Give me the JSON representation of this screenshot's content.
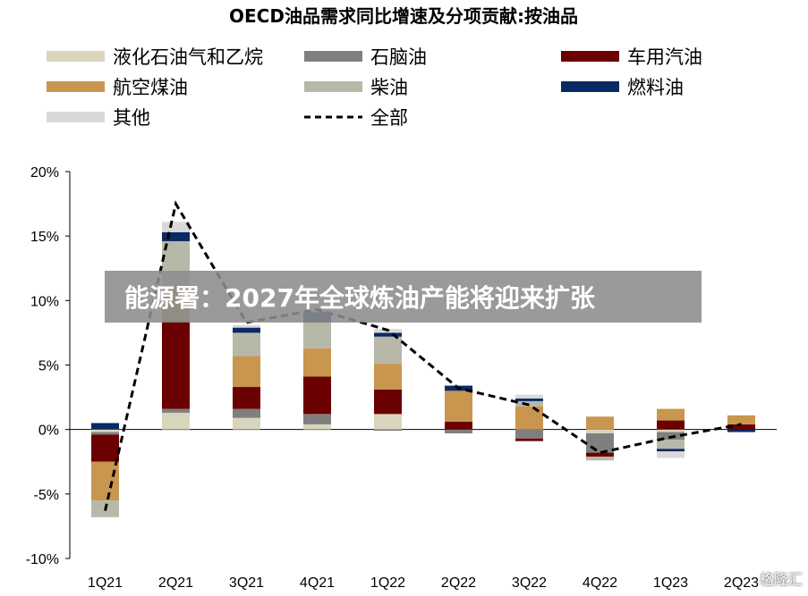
{
  "chart_data": {
    "type": "bar",
    "stacked": true,
    "title": "OECD油品需求同比增速及分项贡献:按油品",
    "categories": [
      "1Q21",
      "2Q21",
      "3Q21",
      "4Q21",
      "1Q22",
      "2Q22",
      "3Q22",
      "4Q22",
      "1Q23",
      "2Q23"
    ],
    "y_ticks": [
      "20%",
      "15%",
      "10%",
      "5%",
      "0%",
      "-5%",
      "-10%"
    ],
    "ylim": [
      -10,
      20
    ],
    "grid": false,
    "legend_position": "top",
    "series": [
      {
        "name": "液化石油气和乙烷",
        "color": "#d9d5bd",
        "values": [
          -0.2,
          1.3,
          0.9,
          0.4,
          1.2,
          0.0,
          0.0,
          -0.3,
          -0.2,
          0.0
        ]
      },
      {
        "name": "石脑油",
        "color": "#7f7f7f",
        "values": [
          -0.2,
          0.3,
          0.7,
          0.8,
          -0.1,
          -0.3,
          -0.7,
          -1.5,
          -0.6,
          0.0
        ]
      },
      {
        "name": "车用汽油",
        "color": "#6b0000",
        "values": [
          -2.1,
          6.8,
          1.7,
          2.9,
          1.9,
          0.6,
          -0.2,
          -0.3,
          0.7,
          0.4
        ]
      },
      {
        "name": "航空煤油",
        "color": "#c9964f",
        "values": [
          -3.0,
          2.7,
          2.4,
          2.2,
          2.0,
          2.4,
          1.8,
          1.0,
          0.9,
          0.7
        ]
      },
      {
        "name": "柴油",
        "color": "#b8b8a8",
        "values": [
          -1.3,
          3.5,
          1.8,
          2.0,
          2.1,
          0.0,
          0.4,
          -0.3,
          -0.7,
          0.0
        ]
      },
      {
        "name": "燃料油",
        "color": "#0a2a66",
        "values": [
          0.5,
          0.7,
          0.4,
          0.8,
          0.3,
          0.4,
          0.2,
          0.0,
          -0.2,
          -0.2
        ]
      },
      {
        "name": "其他",
        "color": "#d9d9d9",
        "values": [
          0.0,
          0.8,
          0.2,
          0.2,
          0.3,
          0.0,
          0.3,
          0.0,
          -0.5,
          0.0
        ]
      }
    ],
    "line": {
      "name": "全部",
      "color": "#000000",
      "dash": true,
      "values": [
        -6.3,
        17.5,
        8.3,
        9.3,
        7.7,
        3.2,
        1.9,
        -1.8,
        -0.6,
        0.4
      ]
    }
  },
  "banner": {
    "text": "能源署：2027年全球炼油产能将迎来扩张"
  },
  "watermark": {
    "text": "格隆汇"
  }
}
